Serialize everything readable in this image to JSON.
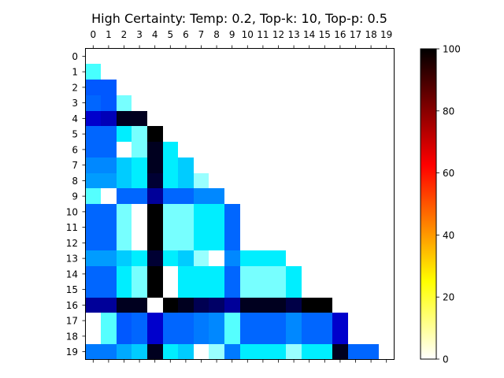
{
  "chart_data": {
    "type": "heatmap",
    "title": "High Certainty: Temp: 0.2, Top-k: 10, Top-p: 0.5",
    "x_ticks": [
      "0",
      "1",
      "2",
      "3",
      "4",
      "5",
      "6",
      "7",
      "8",
      "9",
      "10",
      "11",
      "12",
      "13",
      "14",
      "15",
      "16",
      "17",
      "18",
      "19"
    ],
    "y_ticks": [
      "0",
      "1",
      "2",
      "3",
      "4",
      "5",
      "6",
      "7",
      "8",
      "9",
      "10",
      "11",
      "12",
      "13",
      "14",
      "15",
      "16",
      "17",
      "18",
      "19"
    ],
    "colorbar": {
      "min": 0,
      "max": 100,
      "ticks": [
        "0",
        "20",
        "40",
        "60",
        "80",
        "100"
      ],
      "colormap": "hot_r"
    },
    "matrix": [
      [],
      [
        27
      ],
      [
        62,
        62
      ],
      [
        60,
        62,
        20
      ],
      [
        80,
        82,
        97,
        97
      ],
      [
        60,
        60,
        40,
        20,
        100
      ],
      [
        60,
        60,
        0,
        20,
        97,
        40
      ],
      [
        55,
        55,
        45,
        40,
        97,
        40,
        45
      ],
      [
        52,
        52,
        45,
        40,
        95,
        40,
        45,
        15
      ],
      [
        25,
        0,
        60,
        60,
        85,
        60,
        60,
        55,
        55
      ],
      [
        60,
        60,
        20,
        0,
        100,
        20,
        20,
        40,
        40,
        60
      ],
      [
        60,
        60,
        20,
        0,
        100,
        20,
        20,
        40,
        40,
        60
      ],
      [
        60,
        60,
        20,
        0,
        100,
        20,
        20,
        40,
        40,
        60
      ],
      [
        52,
        52,
        45,
        40,
        95,
        40,
        45,
        15,
        0,
        55,
        40,
        40,
        40
      ],
      [
        60,
        60,
        40,
        20,
        100,
        0,
        40,
        40,
        40,
        60,
        20,
        20,
        20,
        40
      ],
      [
        60,
        60,
        40,
        20,
        100,
        0,
        40,
        40,
        40,
        60,
        20,
        20,
        20,
        40
      ],
      [
        85,
        85,
        97,
        97,
        0,
        100,
        97,
        92,
        90,
        85,
        97,
        97,
        97,
        93,
        100,
        100
      ],
      [
        0,
        25,
        62,
        60,
        80,
        60,
        60,
        57,
        55,
        25,
        60,
        60,
        60,
        55,
        60,
        60,
        80
      ],
      [
        0,
        25,
        62,
        60,
        80,
        60,
        60,
        57,
        55,
        25,
        60,
        60,
        60,
        55,
        60,
        60,
        80
      ],
      [
        57,
        57,
        50,
        45,
        97,
        40,
        45,
        0,
        15,
        57,
        40,
        40,
        40,
        15,
        40,
        40,
        97,
        60,
        60
      ]
    ]
  }
}
